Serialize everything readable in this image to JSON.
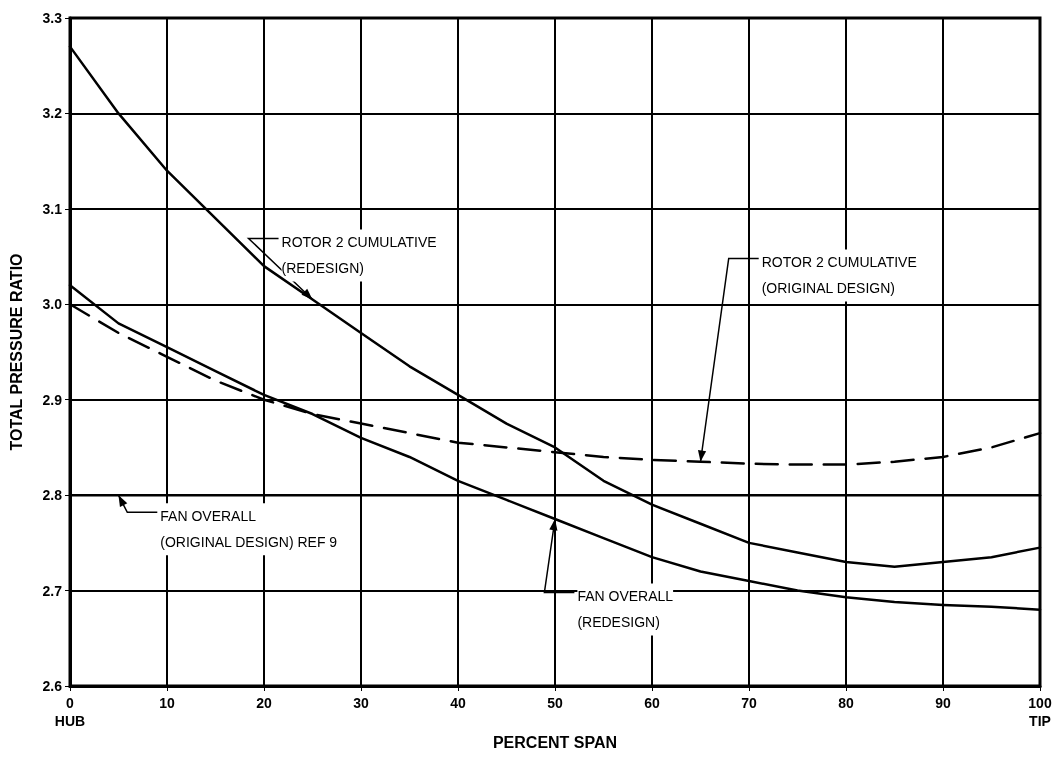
{
  "chart_data": {
    "type": "line",
    "xlabel": "PERCENT SPAN",
    "ylabel": "TOTAL PRESSURE RATIO",
    "x": [
      0,
      5,
      10,
      15,
      20,
      25,
      30,
      35,
      40,
      45,
      50,
      55,
      60,
      65,
      70,
      75,
      80,
      85,
      90,
      95,
      100
    ],
    "series": [
      {
        "name": "ROTOR 2 CUMULATIVE\n(REDESIGN)",
        "color": "#000000",
        "line_style": "solid",
        "values": [
          3.27,
          3.2,
          3.14,
          3.09,
          3.04,
          3.005,
          2.97,
          2.935,
          2.905,
          2.875,
          2.85,
          2.815,
          2.79,
          2.77,
          2.75,
          2.74,
          2.73,
          2.725,
          2.73,
          2.735,
          2.745
        ]
      },
      {
        "name": "ROTOR 2 CUMULATIVE\n(ORIGINAL DESIGN)",
        "color": "#000000",
        "line_style": "dashed",
        "values": [
          3.0,
          2.97,
          2.945,
          2.92,
          2.9,
          2.885,
          2.875,
          2.865,
          2.855,
          2.85,
          2.845,
          2.84,
          2.837,
          2.835,
          2.833,
          2.832,
          2.832,
          2.835,
          2.84,
          2.85,
          2.865
        ]
      },
      {
        "name": "FAN OVERALL\n(REDESIGN)",
        "color": "#000000",
        "line_style": "solid",
        "values": [
          3.02,
          2.98,
          2.955,
          2.93,
          2.905,
          2.885,
          2.86,
          2.84,
          2.815,
          2.795,
          2.775,
          2.755,
          2.735,
          2.72,
          2.71,
          2.7,
          2.693,
          2.688,
          2.685,
          2.683,
          2.68
        ]
      },
      {
        "name": "FAN OVERALL\n(ORIGINAL DESIGN) REF 9",
        "color": "#000000",
        "line_style": "solid",
        "values": [
          2.8,
          2.8,
          2.8,
          2.8,
          2.8,
          2.8,
          2.8,
          2.8,
          2.8,
          2.8,
          2.8,
          2.8,
          2.8,
          2.8,
          2.8,
          2.8,
          2.8,
          2.8,
          2.8,
          2.8,
          2.8
        ]
      }
    ],
    "xlim": [
      0,
      100
    ],
    "xticks": [
      {
        "value": 0,
        "label": "0\nHUB"
      },
      10,
      20,
      30,
      40,
      50,
      60,
      70,
      80,
      90,
      {
        "value": 100,
        "label": "100\nTIP"
      }
    ],
    "ylim": [
      2.6,
      3.3
    ],
    "yticks": [
      {
        "value": 2.6,
        "label": "2.6"
      },
      2.7,
      2.8,
      2.9,
      {
        "value": 3.0,
        "label": "3.0"
      },
      3.1,
      3.2,
      3.3
    ],
    "grid": true,
    "legend": false,
    "marker": "none"
  }
}
